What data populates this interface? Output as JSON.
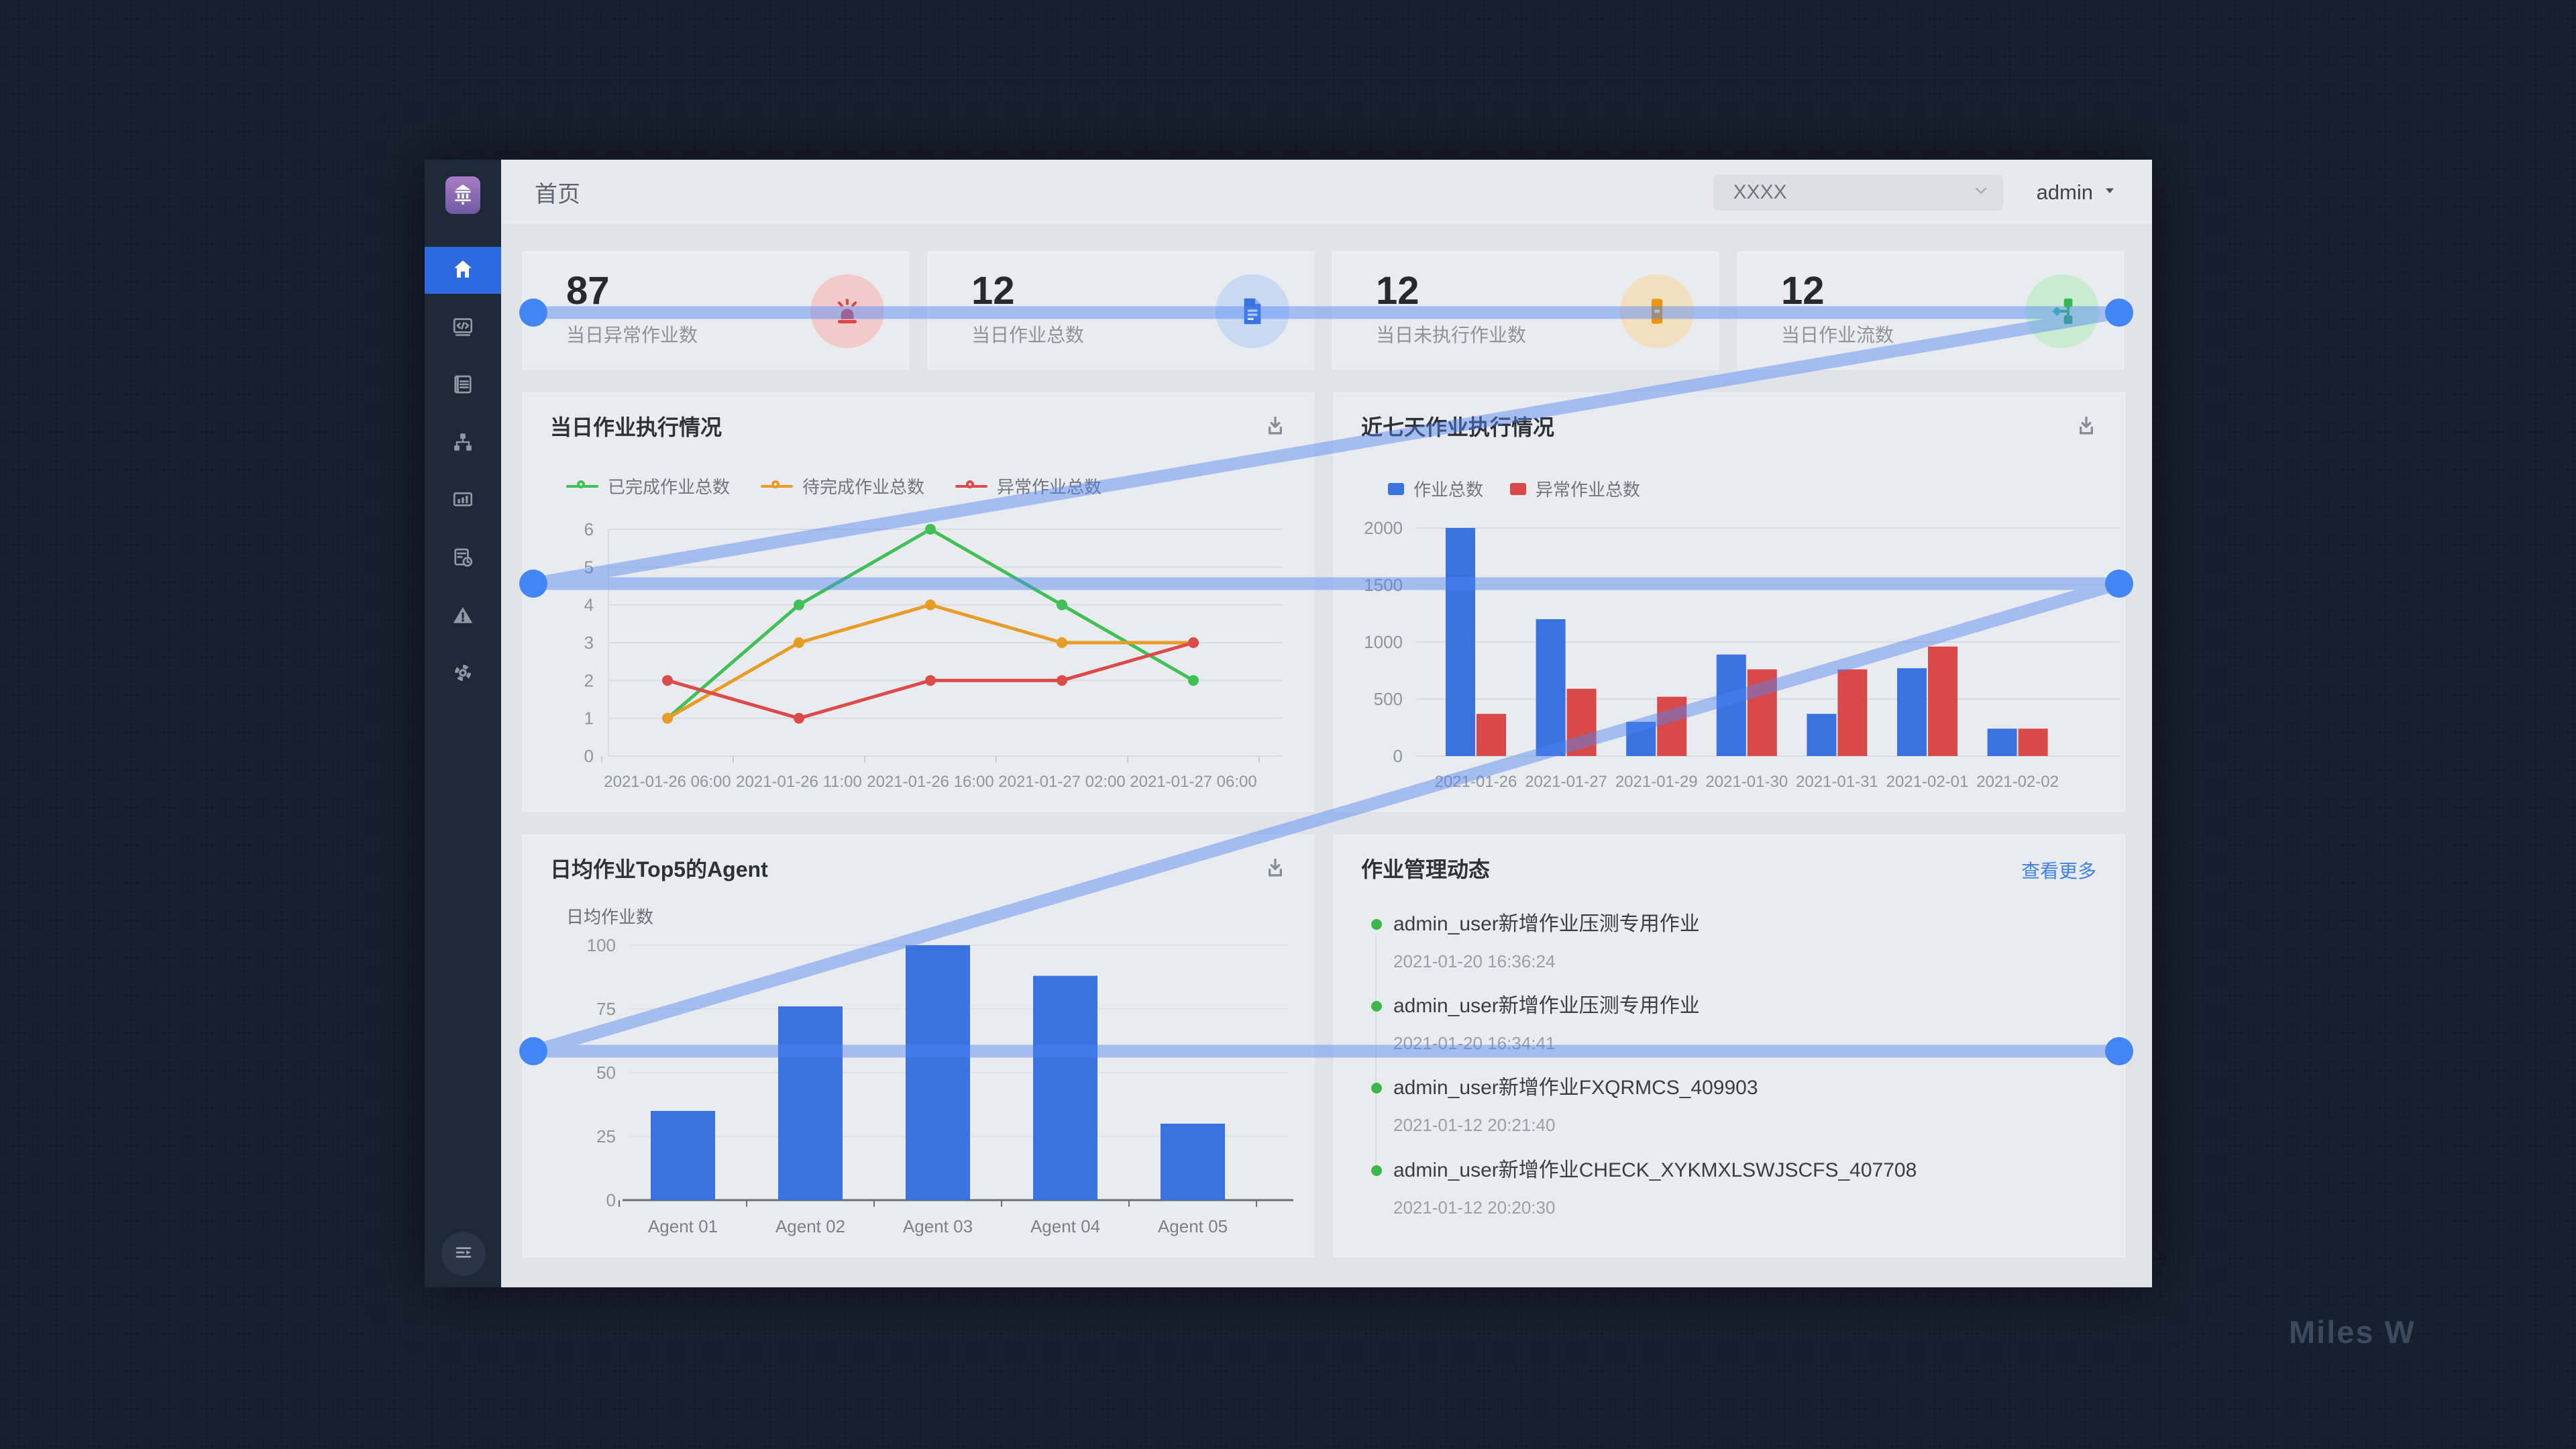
{
  "app": {
    "watermark": "Miles W"
  },
  "topbar": {
    "page_title": "首页",
    "select_value": "XXXX",
    "user_label": "admin"
  },
  "sidebar": {
    "logo_icon": "bank-logo-icon",
    "items": [
      {
        "icon": "home-icon",
        "active": true
      },
      {
        "icon": "code-icon",
        "active": false
      },
      {
        "icon": "document-list-icon",
        "active": false
      },
      {
        "icon": "sitemap-icon",
        "active": false
      },
      {
        "icon": "chart-monitor-icon",
        "active": false
      },
      {
        "icon": "report-clock-icon",
        "active": false
      },
      {
        "icon": "warning-icon",
        "active": false
      },
      {
        "icon": "settings-gear-icon",
        "active": false
      }
    ],
    "collapse_icon": "collapse-menu-icon"
  },
  "stats": {
    "cards": [
      {
        "value": "87",
        "label": "当日异常作业数",
        "icon": "alarm-icon",
        "icon_color": "#e04545",
        "icon_bg": "#f2caca"
      },
      {
        "value": "12",
        "label": "当日作业总数",
        "icon": "document-icon",
        "icon_color": "#3a73e0",
        "icon_bg": "#cad9f2"
      },
      {
        "value": "12",
        "label": "当日未执行作业数",
        "icon": "pending-jobs-icon",
        "icon_color": "#e8950f",
        "icon_bg": "#f2dfbf"
      },
      {
        "value": "12",
        "label": "当日作业流数",
        "icon": "flow-icon",
        "icon_color": "#35b94a",
        "icon_bg": "#c9ecd0"
      }
    ]
  },
  "chart_data": [
    {
      "id": "today_exec",
      "type": "line",
      "title": "当日作业执行情况",
      "categories": [
        "2021-01-26 06:00",
        "2021-01-26 11:00",
        "2021-01-26 16:00",
        "2021-01-27 02:00",
        "2021-01-27 06:00"
      ],
      "series": [
        {
          "name": "已完成作业总数",
          "color": "#41c057",
          "values": [
            1,
            4,
            6,
            4,
            2
          ]
        },
        {
          "name": "待完成作业总数",
          "color": "#e79c28",
          "values": [
            1,
            3,
            4,
            3,
            3
          ]
        },
        {
          "name": "异常作业总数",
          "color": "#dc4b4b",
          "values": [
            2,
            1,
            2,
            2,
            3
          ]
        }
      ],
      "ylim": [
        0,
        6
      ],
      "yticks": [
        0,
        1,
        2,
        3,
        4,
        5,
        6
      ],
      "grid": true,
      "legend_position": "top-left"
    },
    {
      "id": "week_exec",
      "type": "bar",
      "title": "近七天作业执行情况",
      "categories": [
        "2021-01-26",
        "2021-01-27",
        "2021-01-29",
        "2021-01-30",
        "2021-01-31",
        "2021-02-01",
        "2021-02-02"
      ],
      "series": [
        {
          "name": "作业总数",
          "color": "#3a73e0",
          "values": [
            2000,
            1200,
            300,
            890,
            370,
            770,
            240
          ]
        },
        {
          "name": "异常作业总数",
          "color": "#d84a4a",
          "values": [
            370,
            590,
            520,
            760,
            760,
            960,
            240
          ]
        }
      ],
      "ylim": [
        0,
        2000
      ],
      "yticks": [
        0,
        500,
        1000,
        1500,
        2000
      ],
      "grid": true,
      "legend_position": "top-left"
    },
    {
      "id": "top_agents",
      "type": "bar",
      "title": "日均作业Top5的Agent",
      "ylabel": "日均作业数",
      "categories": [
        "Agent 01",
        "Agent 02",
        "Agent 03",
        "Agent 04",
        "Agent 05"
      ],
      "series": [
        {
          "name": "日均作业数",
          "color": "#3a73e0",
          "values": [
            35,
            76,
            100,
            88,
            30
          ]
        }
      ],
      "ylim": [
        0,
        100
      ],
      "yticks": [
        0,
        25,
        50,
        75,
        100
      ],
      "grid": true
    }
  ],
  "activity": {
    "title": "作业管理动态",
    "more_label": "查看更多",
    "items": [
      {
        "text": "admin_user新增作业压测专用作业",
        "time": "2021-01-20 16:36:24"
      },
      {
        "text": "admin_user新增作业压测专用作业",
        "time": "2021-01-20 16:34:41"
      },
      {
        "text": "admin_user新增作业FXQRMCS_409903",
        "time": "2021-01-12 20:21:40"
      },
      {
        "text": "admin_user新增作业CHECK_XYKMXLSWJSCFS_407708",
        "time": "2021-01-12 20:20:30"
      }
    ]
  },
  "overlay": {
    "stroke_color": "rgba(77,133,244,0.45)",
    "dot_color": "#4285f4",
    "points": [
      [
        795,
        466
      ],
      [
        3159,
        466
      ],
      [
        795,
        870
      ],
      [
        3159,
        870
      ],
      [
        795,
        1567
      ],
      [
        3159,
        1567
      ]
    ]
  }
}
